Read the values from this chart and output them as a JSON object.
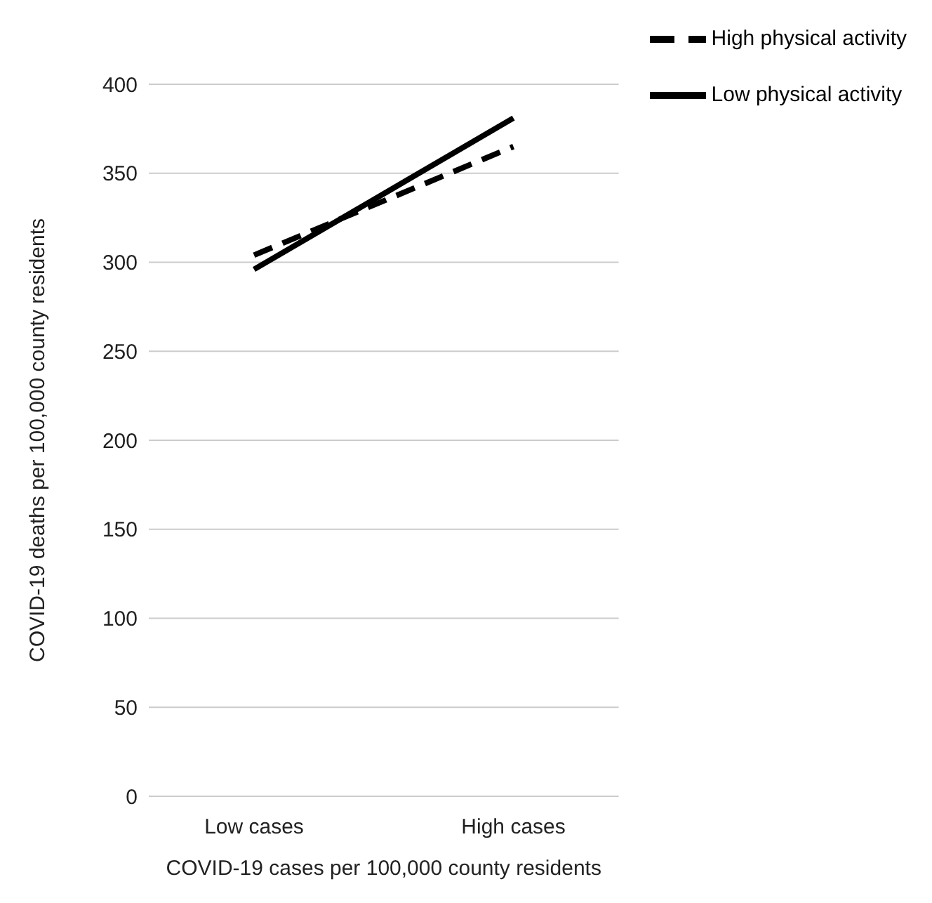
{
  "chart_data": {
    "type": "line",
    "xlabel": "COVID-19 cases per 100,000 county residents",
    "ylabel": "COVID-19 deaths per 100,000 county residents",
    "categories": [
      "Low cases",
      "High cases"
    ],
    "series": [
      {
        "name": "Low physical activity",
        "color": "#000000",
        "values": [
          296,
          381
        ],
        "line_style": "solid"
      },
      {
        "name": "High physical activity",
        "color": "#000000",
        "values": [
          304,
          365
        ],
        "line_style": "dashed"
      }
    ],
    "ylim": [
      0,
      400
    ],
    "yticks": [
      0,
      50,
      100,
      150,
      200,
      250,
      300,
      350,
      400
    ],
    "grid": "y",
    "legend": "top right",
    "marker": "none"
  }
}
